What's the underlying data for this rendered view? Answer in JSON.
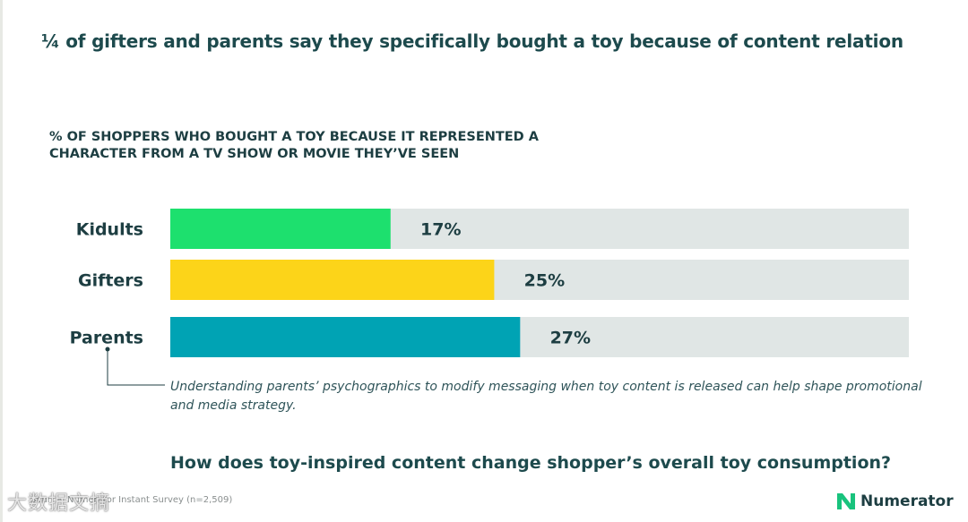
{
  "page": {
    "title": "¼ of gifters and parents say they specifically bought a toy because of content relation",
    "callout": "Understanding parents’ psychographics to modify messaging when toy content is released can help shape promotional and media strategy.",
    "question": "How does toy-inspired content change shopper’s overall toy consumption?",
    "source": "Source: Numerator Instant Survey (n=2,509)",
    "watermark": "大数据文摘",
    "brand": {
      "name": "Numerator",
      "icon": "numerator-n-logo-icon",
      "color": "#19c37d"
    }
  },
  "chart_data": {
    "type": "bar",
    "orientation": "horizontal",
    "title": "% OF SHOPPERS WHO BOUGHT A TOY BECAUSE IT REPRESENTED A CHARACTER FROM A TV SHOW OR MOVIE THEY’VE SEEN",
    "categories": [
      "Kidults",
      "Gifters",
      "Parents"
    ],
    "values": [
      17,
      25,
      27
    ],
    "labels": [
      "17%",
      "25%",
      "27%"
    ],
    "colors": [
      "#1de06e",
      "#fcd419",
      "#00a3b4"
    ],
    "track_color": "#e0e6e5",
    "xlim": [
      0,
      100
    ],
    "xlabel": "",
    "ylabel": ""
  }
}
